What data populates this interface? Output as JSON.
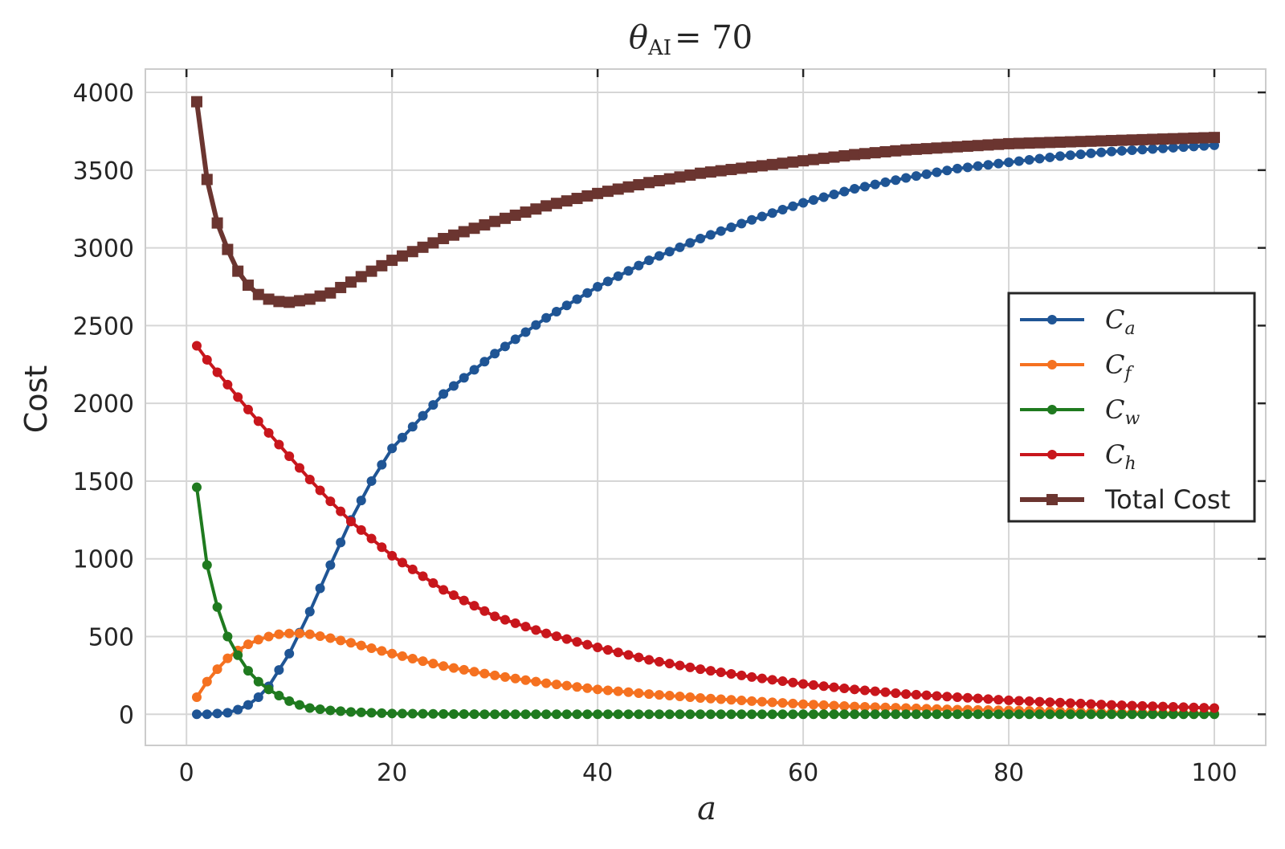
{
  "chart_data": {
    "type": "line",
    "title_symbol": "θ",
    "title_subscript": "AI",
    "title_value": "= 70",
    "xlabel": "a",
    "ylabel": "Cost",
    "xlim": [
      -4,
      105
    ],
    "ylim": [
      -200,
      4150
    ],
    "xticks": [
      0,
      20,
      40,
      60,
      80,
      100
    ],
    "yticks": [
      0,
      500,
      1000,
      1500,
      2000,
      2500,
      3000,
      3500,
      4000
    ],
    "grid": true,
    "legend_position": "center-right",
    "series": [
      {
        "name": "C_a",
        "legend_main": "C",
        "legend_sub": "a",
        "color": "#1f5595",
        "marker": "circle",
        "x": [
          1,
          2,
          3,
          4,
          5,
          6,
          7,
          8,
          10,
          12,
          14,
          16,
          18,
          20,
          25,
          30,
          35,
          40,
          45,
          50,
          55,
          60,
          65,
          70,
          75,
          80,
          85,
          90,
          95,
          100
        ],
        "y": [
          0,
          0,
          5,
          10,
          30,
          60,
          110,
          180,
          390,
          660,
          960,
          1250,
          1500,
          1710,
          2060,
          2320,
          2550,
          2750,
          2920,
          3060,
          3180,
          3290,
          3380,
          3450,
          3510,
          3550,
          3590,
          3620,
          3640,
          3660
        ]
      },
      {
        "name": "C_f",
        "legend_main": "C",
        "legend_sub": "f",
        "color": "#f57120",
        "marker": "circle",
        "x": [
          1,
          2,
          3,
          4,
          5,
          6,
          7,
          8,
          9,
          10,
          11,
          12,
          14,
          16,
          18,
          20,
          25,
          30,
          35,
          40,
          45,
          50,
          55,
          60,
          65,
          70,
          75,
          80,
          85,
          90,
          95,
          100
        ],
        "y": [
          110,
          210,
          290,
          360,
          410,
          450,
          480,
          500,
          515,
          520,
          520,
          515,
          490,
          460,
          425,
          390,
          310,
          250,
          200,
          160,
          130,
          105,
          85,
          65,
          50,
          40,
          30,
          25,
          18,
          12,
          8,
          5
        ]
      },
      {
        "name": "C_w",
        "legend_main": "C",
        "legend_sub": "w",
        "color": "#1f7a1f",
        "marker": "circle",
        "x": [
          1,
          2,
          3,
          4,
          5,
          6,
          7,
          8,
          9,
          10,
          11,
          12,
          14,
          16,
          18,
          20,
          25,
          30,
          40,
          50,
          60,
          70,
          80,
          90,
          100
        ],
        "y": [
          1460,
          960,
          690,
          500,
          380,
          280,
          210,
          160,
          120,
          85,
          60,
          40,
          25,
          15,
          10,
          5,
          2,
          0,
          0,
          0,
          0,
          0,
          0,
          0,
          0
        ]
      },
      {
        "name": "C_h",
        "legend_main": "C",
        "legend_sub": "h",
        "color": "#c8161c",
        "marker": "circle",
        "x": [
          1,
          2,
          3,
          4,
          5,
          6,
          8,
          10,
          12,
          14,
          16,
          18,
          20,
          25,
          30,
          35,
          40,
          45,
          50,
          55,
          60,
          65,
          70,
          75,
          80,
          85,
          90,
          95,
          100
        ],
        "y": [
          2370,
          2280,
          2200,
          2120,
          2040,
          1960,
          1810,
          1660,
          1510,
          1370,
          1240,
          1130,
          1020,
          800,
          630,
          520,
          430,
          350,
          290,
          240,
          195,
          160,
          130,
          110,
          90,
          75,
          60,
          50,
          40
        ]
      },
      {
        "name": "Total Cost",
        "legend_main": "Total Cost",
        "legend_sub": "",
        "color": "#6b3530",
        "marker": "square",
        "x": [
          1,
          2,
          3,
          4,
          5,
          6,
          7,
          8,
          9,
          10,
          11,
          12,
          14,
          16,
          18,
          20,
          25,
          30,
          35,
          40,
          45,
          50,
          55,
          60,
          65,
          70,
          75,
          80,
          85,
          90,
          95,
          100
        ],
        "y": [
          3940,
          3440,
          3160,
          2990,
          2850,
          2760,
          2700,
          2670,
          2655,
          2650,
          2660,
          2670,
          2710,
          2780,
          2850,
          2920,
          3060,
          3170,
          3270,
          3350,
          3420,
          3480,
          3520,
          3560,
          3600,
          3630,
          3650,
          3670,
          3680,
          3690,
          3700,
          3710
        ]
      }
    ]
  }
}
